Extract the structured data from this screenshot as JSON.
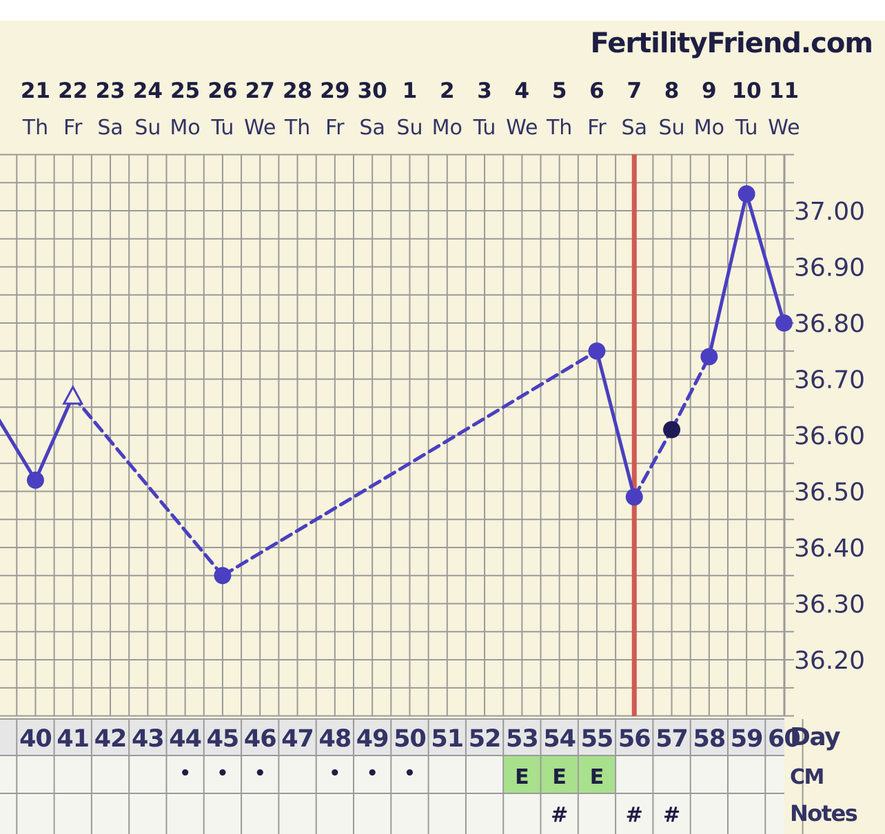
{
  "brand": "FertilityFriend.com",
  "chart_data": {
    "type": "line",
    "dates": [
      "21",
      "22",
      "23",
      "24",
      "25",
      "26",
      "27",
      "28",
      "29",
      "30",
      "1",
      "2",
      "3",
      "4",
      "5",
      "6",
      "7",
      "8",
      "9",
      "10",
      "11"
    ],
    "weekdays": [
      "Th",
      "Fr",
      "Sa",
      "Su",
      "Mo",
      "Tu",
      "We",
      "Th",
      "Fr",
      "Sa",
      "Su",
      "Mo",
      "Tu",
      "We",
      "Th",
      "Fr",
      "Sa",
      "Su",
      "Mo",
      "Tu",
      "We"
    ],
    "days": [
      "40",
      "41",
      "42",
      "43",
      "44",
      "45",
      "46",
      "47",
      "48",
      "49",
      "50",
      "51",
      "52",
      "53",
      "54",
      "55",
      "56",
      "57",
      "58",
      "59",
      "60"
    ],
    "y_ticks": [
      "37.00",
      "36.90",
      "36.80",
      "36.70",
      "36.60",
      "36.50",
      "36.40",
      "36.30",
      "36.20"
    ],
    "ylim": [
      36.1,
      37.1
    ],
    "points": [
      {
        "day": 40,
        "temp": 36.52,
        "marker": "dot"
      },
      {
        "day": 41,
        "temp": 36.67,
        "marker": "open-triangle"
      },
      {
        "day": 45,
        "temp": 36.35,
        "marker": "dot"
      },
      {
        "day": 55,
        "temp": 36.75,
        "marker": "dot"
      },
      {
        "day": 56,
        "temp": 36.49,
        "marker": "dot"
      },
      {
        "day": 57,
        "temp": 36.61,
        "marker": "dark-dot"
      },
      {
        "day": 58,
        "temp": 36.74,
        "marker": "dot"
      },
      {
        "day": 59,
        "temp": 37.03,
        "marker": "dot"
      },
      {
        "day": 60,
        "temp": 36.8,
        "marker": "dot"
      }
    ],
    "segments": [
      {
        "from_day": 39,
        "from_temp": 36.63,
        "to_day": 40,
        "to_temp": 36.52,
        "style": "solid"
      },
      {
        "from_day": 40,
        "from_temp": 36.52,
        "to_day": 41,
        "to_temp": 36.67,
        "style": "solid"
      },
      {
        "from_day": 41,
        "from_temp": 36.67,
        "to_day": 45,
        "to_temp": 36.35,
        "style": "dashed"
      },
      {
        "from_day": 45,
        "from_temp": 36.35,
        "to_day": 55,
        "to_temp": 36.75,
        "style": "dashed"
      },
      {
        "from_day": 55,
        "from_temp": 36.75,
        "to_day": 56,
        "to_temp": 36.49,
        "style": "solid"
      },
      {
        "from_day": 56,
        "from_temp": 36.49,
        "to_day": 57,
        "to_temp": 36.61,
        "style": "dashed"
      },
      {
        "from_day": 57,
        "from_temp": 36.61,
        "to_day": 58,
        "to_temp": 36.74,
        "style": "dashed"
      },
      {
        "from_day": 58,
        "from_temp": 36.74,
        "to_day": 59,
        "to_temp": 37.03,
        "style": "solid"
      },
      {
        "from_day": 59,
        "from_temp": 37.03,
        "to_day": 60,
        "to_temp": 36.8,
        "style": "solid"
      }
    ],
    "ovulation_day": 56,
    "row_labels": {
      "day": "Day",
      "cm": "CM",
      "notes": "Notes"
    },
    "cm_row": [
      "",
      "",
      "",
      "",
      "•",
      "•",
      "•",
      "",
      "•",
      "•",
      "•",
      "",
      "",
      "E",
      "E",
      "E",
      "",
      "",
      "",
      "",
      ""
    ],
    "notes_row": [
      "",
      "",
      "",
      "",
      "",
      "",
      "",
      "",
      "",
      "",
      "",
      "",
      "",
      "",
      "#",
      "",
      "#",
      "#",
      "",
      "",
      ""
    ],
    "grid": true
  },
  "colors": {
    "background": "#f7f3dc",
    "grid": "#9a9a9a",
    "line": "#4a3fc0",
    "dark_dot": "#1e1a55",
    "ovulation": "#d05a52",
    "text": "#333366",
    "header_text": "#1e1e44",
    "row_bg": "#f5f5f0",
    "day_row_bg": "#e6e6e6",
    "cm_fill": "#a8e08c"
  }
}
